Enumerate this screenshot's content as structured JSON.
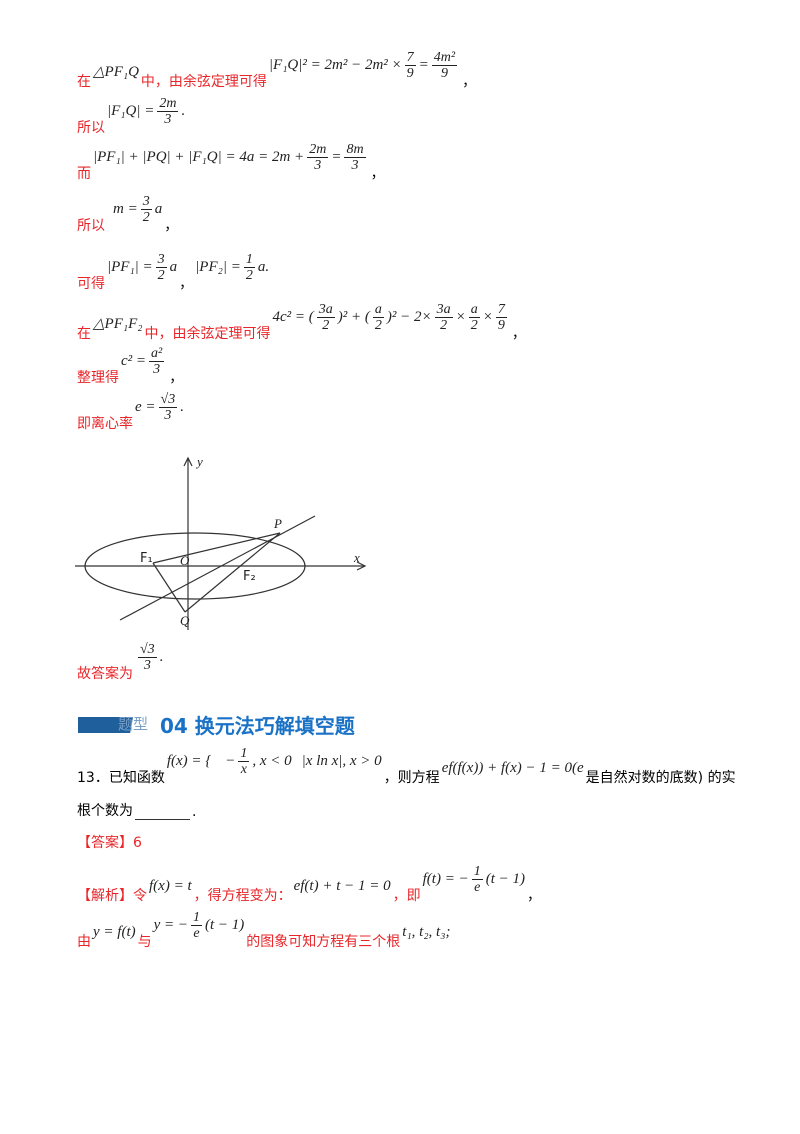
{
  "lines": {
    "l1": {
      "pre": "在",
      "tri": "△PF₁Q",
      "mid": "中，由余弦定理可得",
      "eq": "|F₁Q|² = 2m² − 2m² ×",
      "f1n": "7",
      "f1d": "9",
      "eq2": "=",
      "f2n": "4m²",
      "f2d": "9",
      "post": "，"
    },
    "l2": {
      "pre": "所以",
      "eq": "|F₁Q| =",
      "fn": "2m",
      "fd": "3",
      "post": "."
    },
    "l3": {
      "pre": "而",
      "eq": "|PF₁| + |PQ| + |F₁Q| = 4a = 2m +",
      "f1n": "2m",
      "f1d": "3",
      "eq2": "=",
      "f2n": "8m",
      "f2d": "3",
      "post": "，"
    },
    "l4": {
      "pre": "所以",
      "eq": "m =",
      "fn": "3",
      "fd": "2",
      "eq2": "a",
      "post": "，"
    },
    "l5": {
      "pre": "可得",
      "eq": "|PF₁| =",
      "f1n": "3",
      "f1d": "2",
      "eq2": "a",
      "mid": "，",
      "eq3": "|PF₂| =",
      "f2n": "1",
      "f2d": "2",
      "eq4": "a."
    },
    "l6": {
      "pre": "在",
      "tri": "△PF₁F₂",
      "mid": "中，由余弦定理可得",
      "eq": "4c² = (",
      "f1n": "3a",
      "f1d": "2",
      "eq2": ")² + (",
      "f2n": "a",
      "f2d": "2",
      "eq3": ")² − 2×",
      "f3n": "3a",
      "f3d": "2",
      "eq4": "×",
      "f4n": "a",
      "f4d": "2",
      "eq5": "×",
      "f5n": "7",
      "f5d": "9",
      "post": "，"
    },
    "l7": {
      "pre": "整理得",
      "eq": "c² =",
      "fn": "a²",
      "fd": "3",
      "post": "，"
    },
    "l8": {
      "pre": "即离心率",
      "eq": "e =",
      "fn": "√3",
      "fd": "3",
      "post": "."
    },
    "l9": {
      "pre": "故答案为",
      "fn": "√3",
      "fd": "3",
      "post": "."
    }
  },
  "figure": {
    "labels": {
      "y": "y",
      "x": "x",
      "P": "P",
      "F1": "F₁",
      "O": "O",
      "F2": "F₂",
      "Q": "Q"
    }
  },
  "section": {
    "badge": "题型",
    "title": "04  换元法巧解填空题"
  },
  "q13": {
    "num": "13．已知函数",
    "fx": "f(x) = {",
    "p1": "−",
    "p1n": "1",
    "p1d": "x",
    "p1c": ", x < 0",
    "p2": "|x ln x|, x > 0",
    "mid": "，则方程",
    "eq": "ef(f(x)) + f(x) − 1 = 0(e",
    "tail": "是自然对数的底数",
    "tail2": ") 的实",
    "line2": "根个数为",
    "end": "."
  },
  "answer": {
    "label": "【答案】6"
  },
  "analysis": {
    "label": "【解析】令",
    "e1": "f(x) = t",
    "t1": "，得方程变为：",
    "e2": "ef(t) + t − 1 = 0",
    "t2": "，即",
    "e3": "f(t) = −",
    "e3n": "1",
    "e3d": "e",
    "e3b": "(t − 1)",
    "t3": "，",
    "l2pre": "由",
    "e4": "y = f(t)",
    "t4": "与",
    "e5": "y = −",
    "e5n": "1",
    "e5d": "e",
    "e5b": "(t − 1)",
    "t5": "的图象可知方程有三个根",
    "e6": "t₁, t₂, t₃;"
  },
  "colors": {
    "red": "#e8262a",
    "heading": "#1a72c6",
    "badge": "#1f5f9c"
  }
}
